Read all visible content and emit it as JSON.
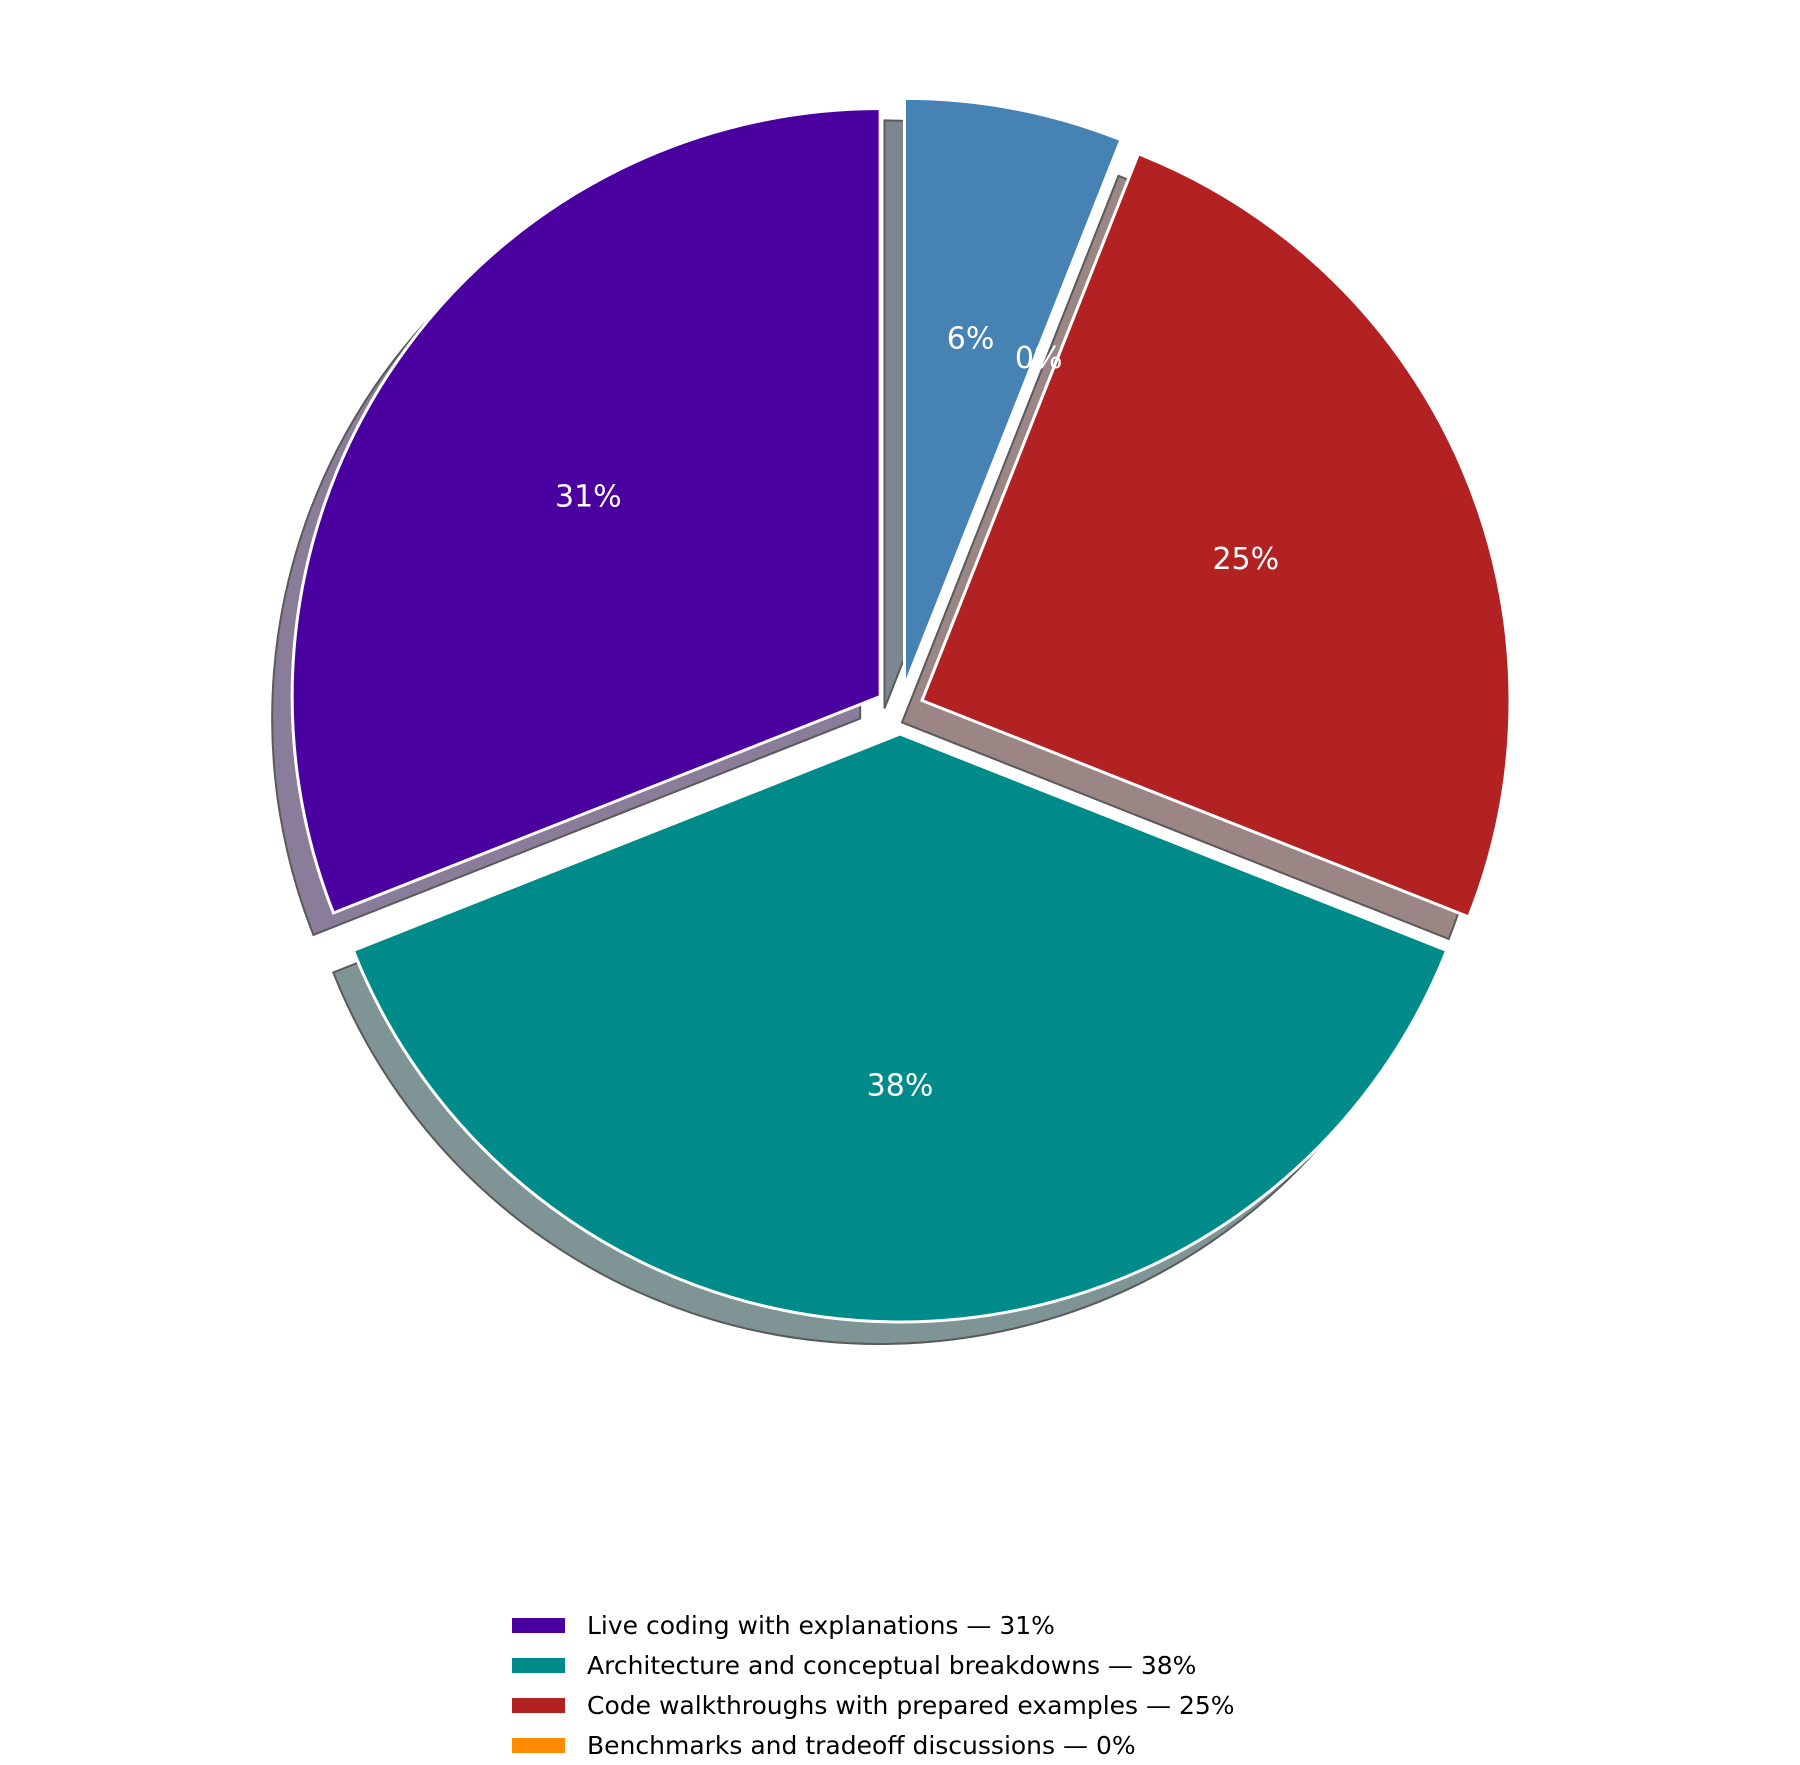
{
  "chart_data": {
    "type": "pie",
    "title": "",
    "slices": [
      {
        "label": "Live coding with explanations",
        "value": 31,
        "pct_label": "31%",
        "color": "#4B00A0",
        "shadow": "#8a7d99",
        "legend": "Live coding with explanations — 31%"
      },
      {
        "label": "Architecture and conceptual breakdowns",
        "value": 38,
        "pct_label": "38%",
        "color": "#008B8B",
        "shadow": "#7f9494",
        "legend": "Architecture and conceptual breakdowns — 38%"
      },
      {
        "label": "Code walkthroughs with prepared examples",
        "value": 25,
        "pct_label": "25%",
        "color": "#B22222",
        "shadow": "#9c8585",
        "legend": "Code walkthroughs with prepared examples — 25%"
      },
      {
        "label": "Benchmarks and tradeoff discussions",
        "value": 0,
        "pct_label": "0%",
        "color": "#FF8C00",
        "shadow": "#9c8a78",
        "legend": "Benchmarks and tradeoff discussions — 0%"
      },
      {
        "label": "",
        "value": 6,
        "pct_label": "6%",
        "color": "#4682B4",
        "shadow": "#7d8791",
        "legend": ""
      }
    ],
    "start_angle_deg": 90,
    "direction": "counterclockwise",
    "label_color": "#ffffff",
    "shadow": true,
    "exploded": true,
    "legend_position": "bottom-center"
  }
}
